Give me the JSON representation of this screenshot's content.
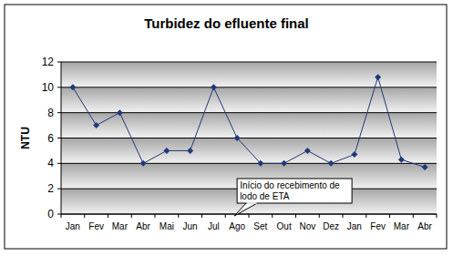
{
  "chart_data": {
    "type": "line",
    "title": "Turbidez do efluente final",
    "y_label": "NTU",
    "categories": [
      "Jan",
      "Fev",
      "Mar",
      "Abr",
      "Mai",
      "Jun",
      "Jul",
      "Ago",
      "Set",
      "Out",
      "Nov",
      "Dez",
      "Jan",
      "Fev",
      "Mar",
      "Abr"
    ],
    "values": [
      10,
      7,
      8,
      4,
      5,
      5,
      10,
      6,
      4,
      4,
      5,
      4,
      4.7,
      10.8,
      4.3,
      3.7
    ],
    "color": "#1f3a7a",
    "marker": "diamond",
    "ylim": [
      0,
      12
    ],
    "yticks": [
      0,
      2,
      4,
      6,
      8,
      10,
      12
    ],
    "grid": true,
    "annotation": {
      "text": "Início do recebimento de lodo de ETA",
      "category": "Ago"
    }
  }
}
